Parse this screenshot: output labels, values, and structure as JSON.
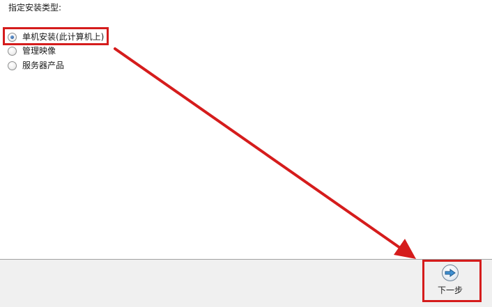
{
  "prompt": "指定安装类型:",
  "options": [
    {
      "label": "单机安装(此计算机上)",
      "checked": true
    },
    {
      "label": "管理映像",
      "checked": false
    },
    {
      "label": "服务器产品",
      "checked": false
    }
  ],
  "footer": {
    "next_label": "下一步",
    "next_icon": "arrow-right-circle-icon"
  },
  "annotation": {
    "color": "#d51c1c"
  }
}
